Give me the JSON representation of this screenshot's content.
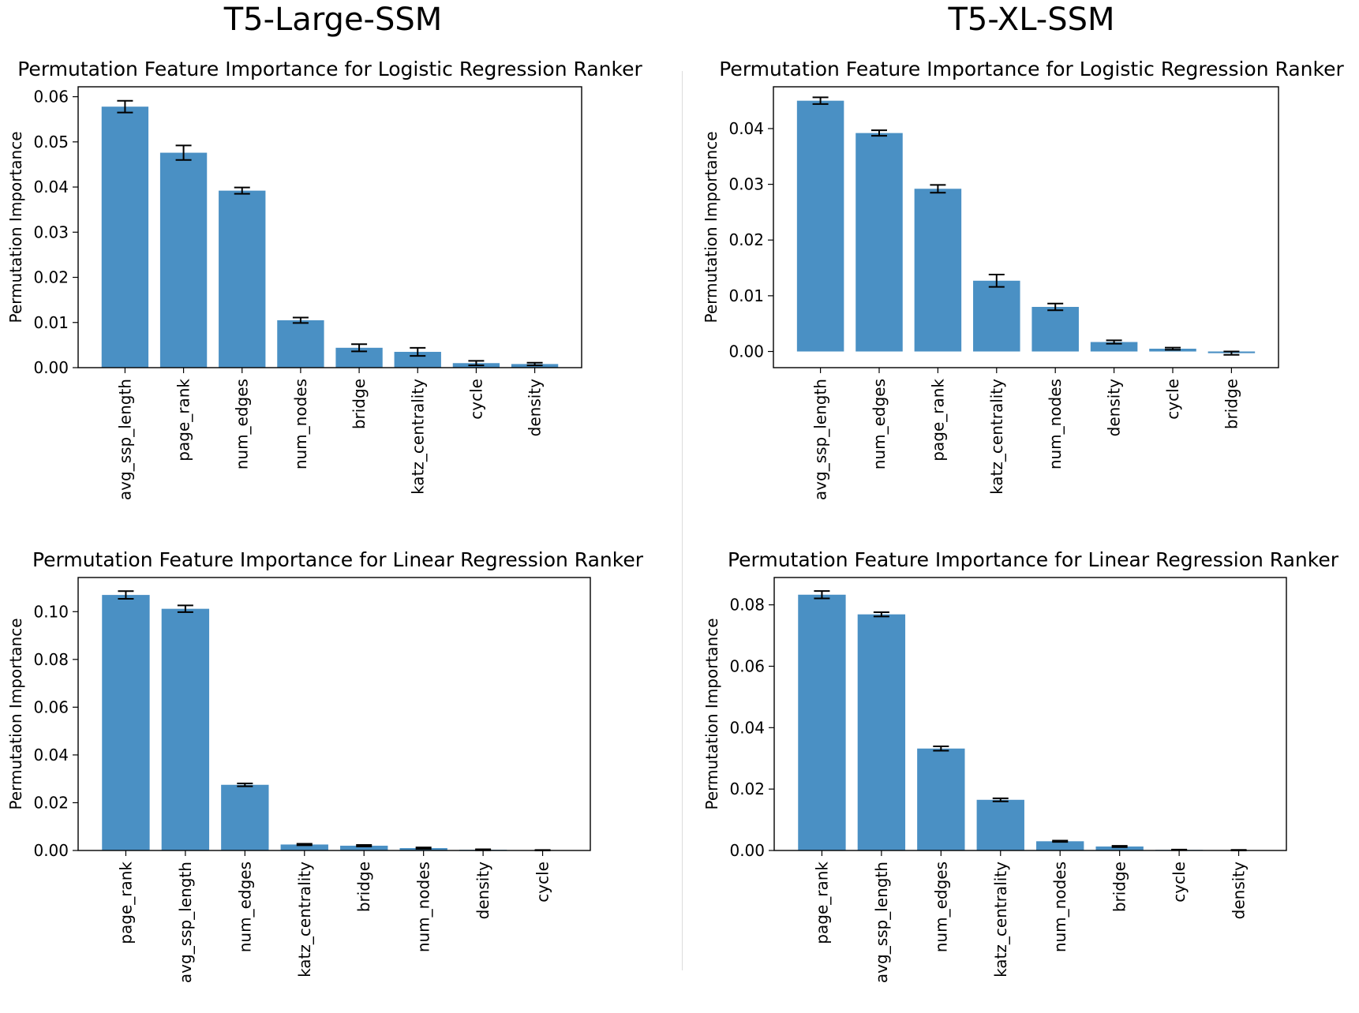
{
  "columns": [
    {
      "title": "T5-Large-SSM"
    },
    {
      "title": "T5-XL-SSM"
    }
  ],
  "chart_data": [
    {
      "type": "bar",
      "title": "Permutation Feature Importance for Logistic Regression Ranker",
      "ylabel": "Permutation Importance",
      "xlabel": "",
      "ylim": [
        0,
        0.0622
      ],
      "yticks": [
        0,
        0.01,
        0.02,
        0.03,
        0.04,
        0.05,
        0.06
      ],
      "ytick_labels": [
        "0.00",
        "0.01",
        "0.02",
        "0.03",
        "0.04",
        "0.05",
        "0.06"
      ],
      "categories": [
        "avg_ssp_length",
        "page_rank",
        "num_edges",
        "num_nodes",
        "bridge",
        "katz_centrality",
        "cycle",
        "density"
      ],
      "values": [
        0.0578,
        0.0476,
        0.0392,
        0.0105,
        0.0044,
        0.0035,
        0.001,
        0.0008
      ],
      "errors": [
        0.0013,
        0.0016,
        0.0007,
        0.0006,
        0.0008,
        0.0009,
        0.0005,
        0.0003
      ],
      "grid": false
    },
    {
      "type": "bar",
      "title": "Permutation Feature Importance for Logistic Regression Ranker",
      "ylabel": "Permutation Importance",
      "xlabel": "",
      "ylim": [
        -0.0029,
        0.0475
      ],
      "yticks": [
        0,
        0.01,
        0.02,
        0.03,
        0.04
      ],
      "ytick_labels": [
        "0.00",
        "0.01",
        "0.02",
        "0.03",
        "0.04"
      ],
      "categories": [
        "avg_ssp_length",
        "num_edges",
        "page_rank",
        "katz_centrality",
        "num_nodes",
        "density",
        "cycle",
        "bridge"
      ],
      "values": [
        0.045,
        0.0392,
        0.0292,
        0.0127,
        0.008,
        0.0017,
        0.0005,
        -0.0003
      ],
      "errors": [
        0.0006,
        0.0005,
        0.0007,
        0.0011,
        0.0006,
        0.0003,
        0.0002,
        0.0003
      ],
      "grid": false
    },
    {
      "type": "bar",
      "title": "Permutation Feature Importance for Linear Regression Ranker",
      "ylabel": "Permutation Importance",
      "xlabel": "",
      "ylim": [
        0,
        0.1143
      ],
      "yticks": [
        0,
        0.02,
        0.04,
        0.06,
        0.08,
        0.1
      ],
      "ytick_labels": [
        "0.00",
        "0.02",
        "0.04",
        "0.06",
        "0.08",
        "0.10"
      ],
      "categories": [
        "page_rank",
        "avg_ssp_length",
        "num_edges",
        "katz_centrality",
        "bridge",
        "num_nodes",
        "density",
        "cycle"
      ],
      "values": [
        0.107,
        0.1012,
        0.0275,
        0.0025,
        0.002,
        0.001,
        0.0003,
        0.0001
      ],
      "errors": [
        0.0016,
        0.0014,
        0.0006,
        0.0003,
        0.0003,
        0.0003,
        0.0002,
        0.0001
      ],
      "grid": false
    },
    {
      "type": "bar",
      "title": "Permutation Feature Importance for Linear Regression Ranker",
      "ylabel": "Permutation Importance",
      "xlabel": "",
      "ylim": [
        0,
        0.0889
      ],
      "yticks": [
        0,
        0.02,
        0.04,
        0.06,
        0.08
      ],
      "ytick_labels": [
        "0.00",
        "0.02",
        "0.04",
        "0.06",
        "0.08"
      ],
      "categories": [
        "page_rank",
        "avg_ssp_length",
        "num_edges",
        "katz_centrality",
        "num_nodes",
        "bridge",
        "cycle",
        "density"
      ],
      "values": [
        0.0833,
        0.0769,
        0.0332,
        0.0165,
        0.003,
        0.0013,
        0.0002,
        0.0001
      ],
      "errors": [
        0.0012,
        0.0007,
        0.0007,
        0.0005,
        0.0002,
        0.0002,
        0.0001,
        0.0001
      ],
      "grid": false
    }
  ]
}
